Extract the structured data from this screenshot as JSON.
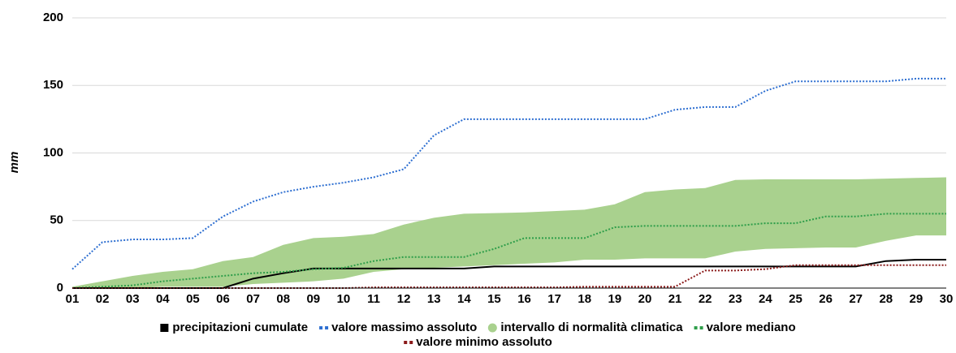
{
  "chart_data": {
    "type": "line",
    "y_label": "mm",
    "categories": [
      "01",
      "02",
      "03",
      "04",
      "05",
      "06",
      "07",
      "08",
      "09",
      "10",
      "11",
      "12",
      "13",
      "14",
      "15",
      "16",
      "17",
      "18",
      "19",
      "20",
      "21",
      "22",
      "23",
      "24",
      "25",
      "26",
      "27",
      "28",
      "29",
      "30"
    ],
    "ylim": [
      0,
      200
    ],
    "yticks": [
      0,
      50,
      100,
      150,
      200
    ],
    "grid": true,
    "series": [
      {
        "name": "precipitazioni cumulate",
        "color": "#000000",
        "style": "solid",
        "values": [
          0,
          0,
          0,
          0,
          0,
          0,
          7,
          11,
          14.5,
          14.5,
          14.5,
          14.5,
          14.5,
          14.5,
          16,
          16,
          16,
          16,
          16,
          16,
          16,
          16,
          16,
          16,
          16,
          16,
          16,
          20,
          21,
          21
        ]
      },
      {
        "name": "valore massimo assoluto",
        "color": "#2e6fd1",
        "style": "dotted",
        "values": [
          14,
          34,
          36,
          36,
          37,
          53,
          64,
          71,
          75,
          78,
          82,
          88,
          113,
          125,
          125,
          125,
          125,
          125,
          125,
          125,
          132,
          134,
          134,
          146,
          153,
          153,
          153,
          153,
          155,
          155
        ]
      },
      {
        "name": "intervallo di normalità climatica",
        "color": "#a9d18e",
        "style": "band",
        "high": [
          1,
          5,
          9,
          12,
          14,
          20,
          23,
          32,
          37,
          38,
          40,
          47,
          52,
          55,
          55.5,
          56,
          57,
          58,
          62,
          71,
          73,
          74,
          80,
          80.5,
          80.5,
          80.5,
          80.5,
          81,
          81.5,
          82
        ],
        "low": [
          0,
          0,
          0,
          1,
          1,
          1,
          3,
          4,
          5,
          7,
          12,
          14,
          15,
          16,
          17,
          18,
          19,
          21,
          21,
          22,
          22,
          22,
          27,
          29,
          29.5,
          30,
          30,
          35,
          39,
          39
        ]
      },
      {
        "name": "valore mediano",
        "color": "#2e9e4a",
        "style": "dotted",
        "values": [
          0,
          1,
          2,
          5,
          7,
          9,
          11,
          12,
          14,
          15,
          20,
          23,
          23,
          23,
          29,
          37,
          37,
          37,
          45,
          46,
          46,
          46,
          46,
          48,
          48,
          53,
          53,
          55,
          55,
          55
        ]
      },
      {
        "name": "valore minimo assoluto",
        "color": "#8b1a1a",
        "style": "dotted",
        "values": [
          0,
          0,
          0,
          0,
          0,
          0,
          0,
          0,
          0,
          0,
          0.5,
          0.5,
          0.5,
          0.5,
          0.5,
          0.5,
          0.5,
          1,
          1,
          1,
          1,
          13,
          13,
          14,
          17,
          17,
          17,
          17,
          17,
          17
        ]
      }
    ]
  }
}
